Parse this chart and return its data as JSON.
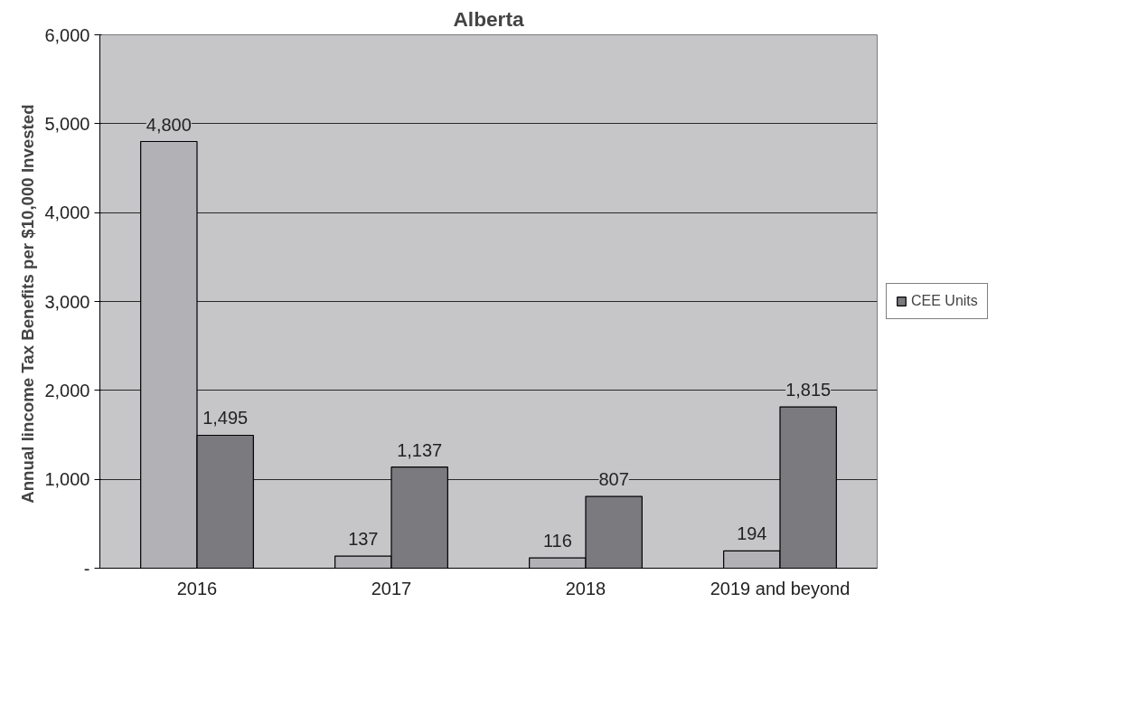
{
  "chart_data": {
    "type": "bar",
    "title": "Alberta",
    "ylabel": "Annual Iincome  Tax Benefits per $10,000 Invested",
    "categories": [
      "2016",
      "2017",
      "2018",
      "2019 and beyond"
    ],
    "series": [
      {
        "color": "#b1b1b6",
        "values": [
          4800,
          137,
          116,
          194
        ],
        "value_labels": [
          "4,800",
          "137",
          "116",
          "194"
        ]
      },
      {
        "name": "CEE Units",
        "color": "#7a7a7f",
        "values": [
          1495,
          1137,
          807,
          1815
        ],
        "value_labels": [
          "1,495",
          "1,137",
          "807",
          "1,815"
        ]
      }
    ],
    "ylim": [
      0,
      6000
    ],
    "yticks": [
      {
        "value": 0,
        "label": "-"
      },
      {
        "value": 1000,
        "label": "1,000"
      },
      {
        "value": 2000,
        "label": "2,000"
      },
      {
        "value": 3000,
        "label": "3,000"
      },
      {
        "value": 4000,
        "label": "4,000"
      },
      {
        "value": 5000,
        "label": "5,000"
      },
      {
        "value": 6000,
        "label": "6,000"
      }
    ],
    "grid": "y",
    "legend": "right"
  }
}
